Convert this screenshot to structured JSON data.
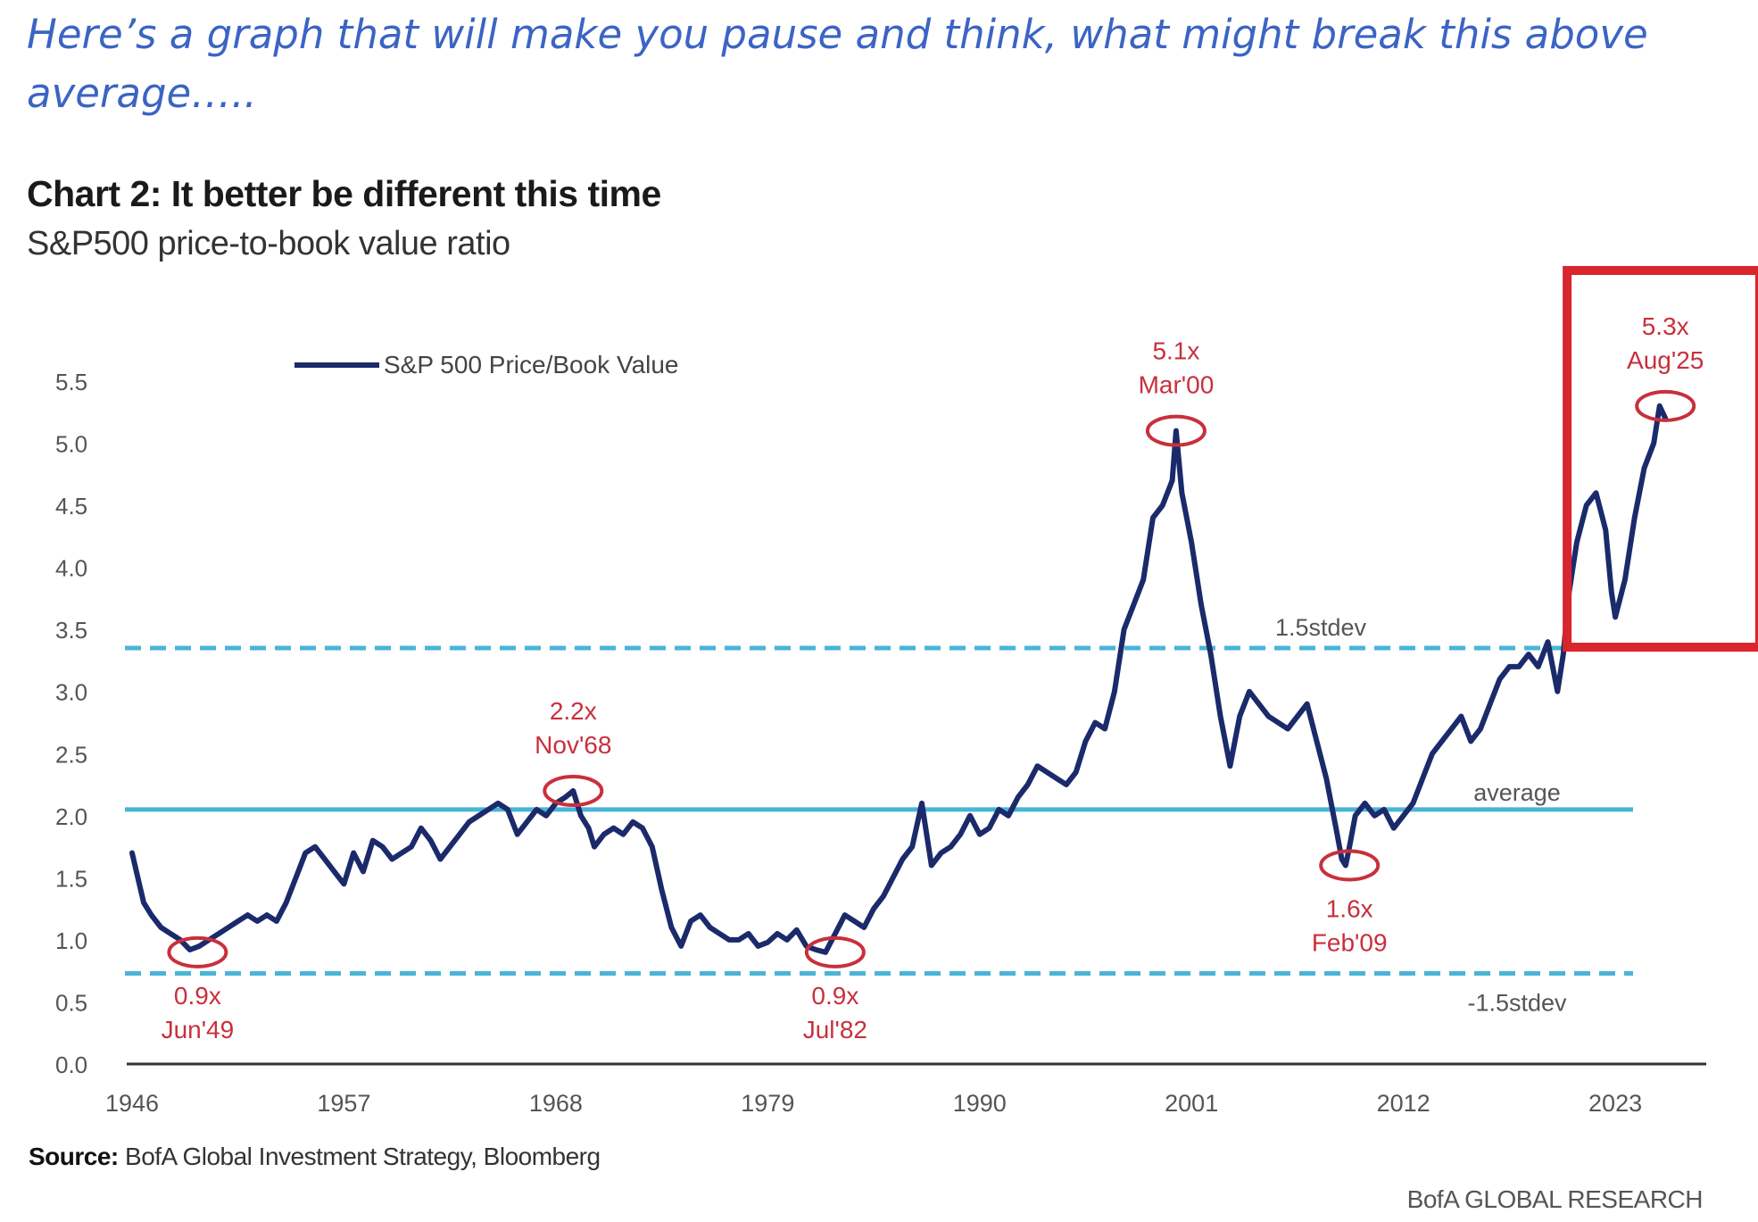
{
  "intro_text": "Here’s a graph that will make you pause and think, what might break this above average…..",
  "chart_data": {
    "type": "line",
    "title": "Chart 2: It better be different this time",
    "subtitle": "S&P500 price-to-book value ratio",
    "legend": "S&P 500 Price/Book Value",
    "legend_position": "top-left",
    "xlabel": "",
    "ylabel": "",
    "xlim": [
      1946,
      2028
    ],
    "ylim": [
      0,
      5.5
    ],
    "x_ticks": [
      "1946",
      "1957",
      "1968",
      "1979",
      "1990",
      "2001",
      "2012",
      "2023"
    ],
    "y_ticks": [
      "0.0",
      "0.5",
      "1.0",
      "1.5",
      "2.0",
      "2.5",
      "3.0",
      "3.5",
      "4.0",
      "4.5",
      "5.0",
      "5.5"
    ],
    "reference_lines": [
      {
        "name": "1.5stdev",
        "value": 3.35,
        "style": "dashed"
      },
      {
        "name": "average",
        "value": 2.05,
        "style": "solid"
      },
      {
        "name": "-1.5stdev",
        "value": 0.73,
        "style": "dashed"
      }
    ],
    "series": [
      {
        "name": "S&P 500 Price/Book Value",
        "x": [
          1946.0,
          1946.3,
          1946.6,
          1947.0,
          1947.5,
          1948.0,
          1948.5,
          1949.0,
          1949.5,
          1950.0,
          1950.5,
          1951.0,
          1951.5,
          1952.0,
          1952.5,
          1953.0,
          1953.5,
          1954.0,
          1954.5,
          1955.0,
          1955.5,
          1956.0,
          1956.5,
          1957.0,
          1957.5,
          1958.0,
          1958.5,
          1959.0,
          1959.5,
          1960.0,
          1960.5,
          1961.0,
          1961.5,
          1962.0,
          1962.5,
          1963.0,
          1963.5,
          1964.0,
          1964.5,
          1965.0,
          1965.5,
          1966.0,
          1966.5,
          1967.0,
          1967.5,
          1968.0,
          1968.5,
          1968.9,
          1969.3,
          1969.7,
          1970.0,
          1970.5,
          1971.0,
          1971.5,
          1972.0,
          1972.5,
          1973.0,
          1973.5,
          1974.0,
          1974.5,
          1975.0,
          1975.5,
          1976.0,
          1976.5,
          1977.0,
          1977.5,
          1978.0,
          1978.5,
          1979.0,
          1979.5,
          1980.0,
          1980.5,
          1981.0,
          1981.5,
          1982.0,
          1982.5,
          1983.0,
          1983.5,
          1984.0,
          1984.5,
          1985.0,
          1985.5,
          1986.0,
          1986.5,
          1987.0,
          1987.5,
          1988.0,
          1988.5,
          1989.0,
          1989.5,
          1990.0,
          1990.5,
          1991.0,
          1991.5,
          1992.0,
          1992.5,
          1993.0,
          1993.5,
          1994.0,
          1994.5,
          1995.0,
          1995.5,
          1996.0,
          1996.5,
          1997.0,
          1997.5,
          1998.0,
          1998.5,
          1999.0,
          1999.5,
          2000.0,
          2000.2,
          2000.5,
          2001.0,
          2001.5,
          2002.0,
          2002.5,
          2003.0,
          2003.5,
          2004.0,
          2004.5,
          2005.0,
          2005.5,
          2006.0,
          2006.5,
          2007.0,
          2007.5,
          2008.0,
          2008.5,
          2008.8,
          2009.0,
          2009.2,
          2009.5,
          2010.0,
          2010.5,
          2011.0,
          2011.5,
          2012.0,
          2012.5,
          2013.0,
          2013.5,
          2014.0,
          2014.5,
          2015.0,
          2015.5,
          2016.0,
          2016.5,
          2017.0,
          2017.5,
          2018.0,
          2018.5,
          2019.0,
          2019.5,
          2020.0,
          2020.3,
          2020.6,
          2021.0,
          2021.5,
          2022.0,
          2022.5,
          2022.8,
          2023.0,
          2023.5,
          2024.0,
          2024.5,
          2025.0,
          2025.3,
          2025.6
        ],
        "values": [
          1.7,
          1.5,
          1.3,
          1.2,
          1.1,
          1.05,
          1.0,
          0.92,
          0.95,
          1.0,
          1.05,
          1.1,
          1.15,
          1.2,
          1.15,
          1.2,
          1.15,
          1.3,
          1.5,
          1.7,
          1.75,
          1.65,
          1.55,
          1.45,
          1.7,
          1.55,
          1.8,
          1.75,
          1.65,
          1.7,
          1.75,
          1.9,
          1.8,
          1.65,
          1.75,
          1.85,
          1.95,
          2.0,
          2.05,
          2.1,
          2.05,
          1.85,
          1.95,
          2.05,
          2.0,
          2.1,
          2.15,
          2.2,
          2.0,
          1.9,
          1.75,
          1.85,
          1.9,
          1.85,
          1.95,
          1.9,
          1.75,
          1.4,
          1.1,
          0.95,
          1.15,
          1.2,
          1.1,
          1.05,
          1.0,
          1.0,
          1.05,
          0.95,
          0.98,
          1.05,
          1.0,
          1.08,
          0.95,
          0.92,
          0.9,
          1.05,
          1.2,
          1.15,
          1.1,
          1.25,
          1.35,
          1.5,
          1.65,
          1.75,
          2.1,
          1.6,
          1.7,
          1.75,
          1.85,
          2.0,
          1.85,
          1.9,
          2.05,
          2.0,
          2.15,
          2.25,
          2.4,
          2.35,
          2.3,
          2.25,
          2.35,
          2.6,
          2.75,
          2.7,
          3.0,
          3.5,
          3.7,
          3.9,
          4.4,
          4.5,
          4.7,
          5.1,
          4.6,
          4.2,
          3.7,
          3.3,
          2.8,
          2.4,
          2.8,
          3.0,
          2.9,
          2.8,
          2.75,
          2.7,
          2.8,
          2.9,
          2.6,
          2.3,
          1.9,
          1.65,
          1.6,
          1.75,
          2.0,
          2.1,
          2.0,
          2.05,
          1.9,
          2.0,
          2.1,
          2.3,
          2.5,
          2.6,
          2.7,
          2.8,
          2.6,
          2.7,
          2.9,
          3.1,
          3.2,
          3.2,
          3.3,
          3.2,
          3.4,
          3.0,
          3.3,
          3.8,
          4.2,
          4.5,
          4.6,
          4.3,
          3.8,
          3.6,
          3.9,
          4.4,
          4.8,
          5.0,
          5.3,
          5.2
        ]
      }
    ],
    "annotations": [
      {
        "label": "0.9x",
        "sub": "Jun'49",
        "x": 1949.4,
        "y": 0.9,
        "text_position": "below"
      },
      {
        "label": "2.2x",
        "sub": "Nov'68",
        "x": 1968.9,
        "y": 2.2,
        "text_position": "above"
      },
      {
        "label": "0.9x",
        "sub": "Jul'82",
        "x": 1982.5,
        "y": 0.9,
        "text_position": "below"
      },
      {
        "label": "5.1x",
        "sub": "Mar'00",
        "x": 2000.2,
        "y": 5.1,
        "text_position": "above"
      },
      {
        "label": "1.6x",
        "sub": "Feb'09",
        "x": 2009.2,
        "y": 1.6,
        "text_position": "below"
      },
      {
        "label": "5.3x",
        "sub": "Aug'25",
        "x": 2025.6,
        "y": 5.3,
        "text_position": "above"
      }
    ],
    "highlight_box": {
      "x_start": 2020.5,
      "x_end": 2030.5
    },
    "colors": {
      "series": "#1b2a6b",
      "reference": "#4ab4d8",
      "annotation": "#c8303c",
      "highlight": "#d9252d",
      "axis": "#333333",
      "tick_text": "#555555"
    }
  },
  "source": {
    "label": "Source:",
    "text": "BofA Global Investment Strategy, Bloomberg"
  },
  "footer": {
    "brand": "BofA GLOBAL RESEARCH"
  }
}
